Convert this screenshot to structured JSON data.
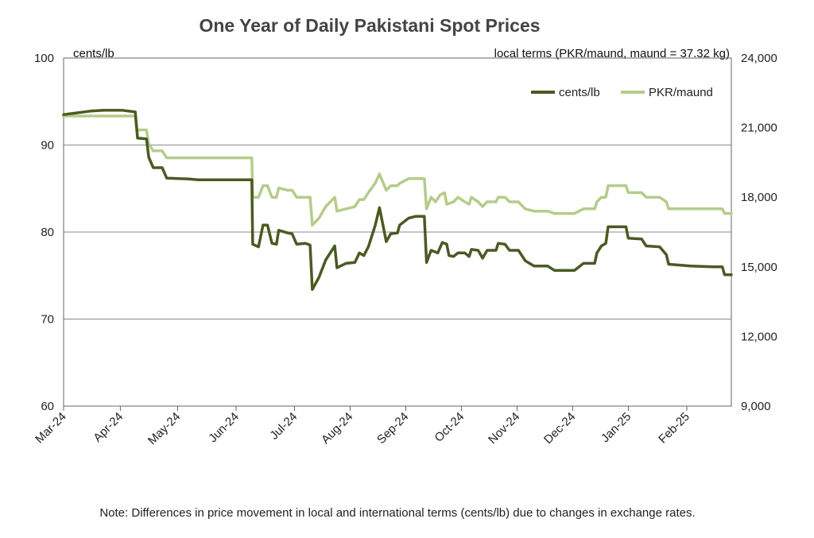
{
  "chart_data": {
    "type": "line",
    "title": "One Year of Daily Pakistani Spot Prices",
    "left_axis_label": "cents/lb",
    "right_axis_label": "local terms (PKR/maund, maund = 37.32 kg)",
    "note": "Note: Differences in price movement in local and international terms (cents/lb) due to changes in exchange rates.",
    "left_ylim": [
      60,
      100
    ],
    "left_yticks": [
      "60",
      "70",
      "80",
      "90",
      "100"
    ],
    "right_ylim": [
      9000,
      24000
    ],
    "right_yticks": [
      "9,000",
      "12,000",
      "15,000",
      "18,000",
      "21,000",
      "24,000"
    ],
    "x_labels": [
      "Mar-24",
      "Apr-24",
      "May-24",
      "Jun-24",
      "Jul-24",
      "Aug-24",
      "Sep-24",
      "Oct-24",
      "Nov-24",
      "Dec-24",
      "Jan-25",
      "Feb-25"
    ],
    "x_range_months": [
      0,
      12
    ],
    "grid": "horizontal",
    "legend_position": "top-right",
    "series": [
      {
        "name": "cents/lb",
        "axis": "left",
        "color": "#4a5a23",
        "points": [
          [
            0,
            93.5
          ],
          [
            0.3,
            93.7
          ],
          [
            0.6,
            93.9
          ],
          [
            0.9,
            94.0
          ],
          [
            1.3,
            94.0
          ],
          [
            1.6,
            93.8
          ],
          [
            1.65,
            90.8
          ],
          [
            1.85,
            90.7
          ],
          [
            1.9,
            88.6
          ],
          [
            2.0,
            87.4
          ],
          [
            2.2,
            87.4
          ],
          [
            2.3,
            86.2
          ],
          [
            2.8,
            86.1
          ],
          [
            3.0,
            86.0
          ],
          [
            3.5,
            86.0
          ],
          [
            4.2,
            86.0
          ],
          [
            4.22,
            78.6
          ],
          [
            4.35,
            78.3
          ],
          [
            4.45,
            80.8
          ],
          [
            4.55,
            80.8
          ],
          [
            4.65,
            78.7
          ],
          [
            4.75,
            78.6
          ],
          [
            4.8,
            80.2
          ],
          [
            5.0,
            79.9
          ],
          [
            5.1,
            79.8
          ],
          [
            5.2,
            78.6
          ],
          [
            5.4,
            78.7
          ],
          [
            5.5,
            78.5
          ],
          [
            5.55,
            73.4
          ],
          [
            5.7,
            74.8
          ],
          [
            5.85,
            76.8
          ],
          [
            6.05,
            78.4
          ],
          [
            6.1,
            75.9
          ],
          [
            6.3,
            76.4
          ],
          [
            6.5,
            76.5
          ],
          [
            6.6,
            77.6
          ],
          [
            6.7,
            77.3
          ],
          [
            6.8,
            78.3
          ],
          [
            6.95,
            80.7
          ],
          [
            7.05,
            82.8
          ],
          [
            7.2,
            78.9
          ],
          [
            7.3,
            79.8
          ],
          [
            7.45,
            79.9
          ],
          [
            7.5,
            80.8
          ],
          [
            7.7,
            81.6
          ],
          [
            7.85,
            81.8
          ],
          [
            8.05,
            81.8
          ],
          [
            8.1,
            76.5
          ],
          [
            8.2,
            77.9
          ],
          [
            8.35,
            77.6
          ],
          [
            8.45,
            78.8
          ],
          [
            8.55,
            78.6
          ],
          [
            8.6,
            77.3
          ],
          [
            8.7,
            77.2
          ],
          [
            8.8,
            77.6
          ],
          [
            8.95,
            77.6
          ],
          [
            9.05,
            77.2
          ],
          [
            9.1,
            78.0
          ],
          [
            9.25,
            77.9
          ],
          [
            9.35,
            77.0
          ],
          [
            9.45,
            77.9
          ],
          [
            9.65,
            77.9
          ],
          [
            9.7,
            78.7
          ],
          [
            9.85,
            78.6
          ],
          [
            9.95,
            77.9
          ],
          [
            10.15,
            77.9
          ],
          [
            10.3,
            76.7
          ],
          [
            10.5,
            76.1
          ],
          [
            10.8,
            76.1
          ],
          [
            10.95,
            75.6
          ],
          [
            11.3,
            75.6
          ],
          [
            11.4,
            75.6
          ],
          [
            11.6,
            76.4
          ],
          [
            11.85,
            76.4
          ],
          [
            11.9,
            77.6
          ],
          [
            12.0,
            78.4
          ],
          [
            12.1,
            78.7
          ],
          [
            12.15,
            80.6
          ],
          [
            12.4,
            80.6
          ],
          [
            12.55,
            80.6
          ],
          [
            12.6,
            79.3
          ],
          [
            12.9,
            79.2
          ],
          [
            13.0,
            78.4
          ],
          [
            13.3,
            78.3
          ],
          [
            13.45,
            77.4
          ],
          [
            13.5,
            76.3
          ],
          [
            14.0,
            76.1
          ],
          [
            14.5,
            76.0
          ],
          [
            14.7,
            76.0
          ],
          [
            14.75,
            75.1
          ],
          [
            14.9,
            75.1
          ]
        ]
      },
      {
        "name": "PKR/maund",
        "axis": "right",
        "color": "#b5cc8a",
        "points": [
          [
            0,
            21500
          ],
          [
            1.6,
            21500
          ],
          [
            1.63,
            20900
          ],
          [
            1.85,
            20900
          ],
          [
            1.9,
            20300
          ],
          [
            2.0,
            20000
          ],
          [
            2.2,
            20000
          ],
          [
            2.3,
            19700
          ],
          [
            3.5,
            19700
          ],
          [
            4.2,
            19700
          ],
          [
            4.22,
            18000
          ],
          [
            4.35,
            18000
          ],
          [
            4.45,
            18500
          ],
          [
            4.55,
            18500
          ],
          [
            4.65,
            18000
          ],
          [
            4.75,
            18000
          ],
          [
            4.8,
            18400
          ],
          [
            5.0,
            18300
          ],
          [
            5.1,
            18300
          ],
          [
            5.2,
            18000
          ],
          [
            5.4,
            18000
          ],
          [
            5.5,
            18000
          ],
          [
            5.55,
            16800
          ],
          [
            5.7,
            17100
          ],
          [
            5.85,
            17600
          ],
          [
            6.05,
            18000
          ],
          [
            6.1,
            17400
          ],
          [
            6.3,
            17500
          ],
          [
            6.5,
            17600
          ],
          [
            6.6,
            17900
          ],
          [
            6.7,
            17900
          ],
          [
            6.8,
            18200
          ],
          [
            6.95,
            18600
          ],
          [
            7.05,
            19000
          ],
          [
            7.2,
            18300
          ],
          [
            7.3,
            18500
          ],
          [
            7.45,
            18500
          ],
          [
            7.5,
            18600
          ],
          [
            7.7,
            18800
          ],
          [
            8.05,
            18800
          ],
          [
            8.1,
            17500
          ],
          [
            8.2,
            18000
          ],
          [
            8.3,
            17800
          ],
          [
            8.4,
            18100
          ],
          [
            8.5,
            18200
          ],
          [
            8.55,
            17700
          ],
          [
            8.7,
            17800
          ],
          [
            8.8,
            18000
          ],
          [
            8.95,
            17800
          ],
          [
            9.05,
            17700
          ],
          [
            9.1,
            18000
          ],
          [
            9.25,
            17800
          ],
          [
            9.35,
            17600
          ],
          [
            9.45,
            17800
          ],
          [
            9.65,
            17800
          ],
          [
            9.7,
            18000
          ],
          [
            9.85,
            18000
          ],
          [
            9.95,
            17800
          ],
          [
            10.15,
            17800
          ],
          [
            10.3,
            17500
          ],
          [
            10.5,
            17400
          ],
          [
            10.8,
            17400
          ],
          [
            10.95,
            17300
          ],
          [
            11.4,
            17300
          ],
          [
            11.6,
            17500
          ],
          [
            11.85,
            17500
          ],
          [
            11.9,
            17800
          ],
          [
            12.0,
            18000
          ],
          [
            12.1,
            18000
          ],
          [
            12.15,
            18500
          ],
          [
            12.4,
            18500
          ],
          [
            12.55,
            18500
          ],
          [
            12.6,
            18200
          ],
          [
            12.9,
            18200
          ],
          [
            13.0,
            18000
          ],
          [
            13.3,
            18000
          ],
          [
            13.45,
            17800
          ],
          [
            13.5,
            17500
          ],
          [
            14.0,
            17500
          ],
          [
            14.7,
            17500
          ],
          [
            14.75,
            17300
          ],
          [
            14.9,
            17300
          ]
        ]
      }
    ]
  }
}
